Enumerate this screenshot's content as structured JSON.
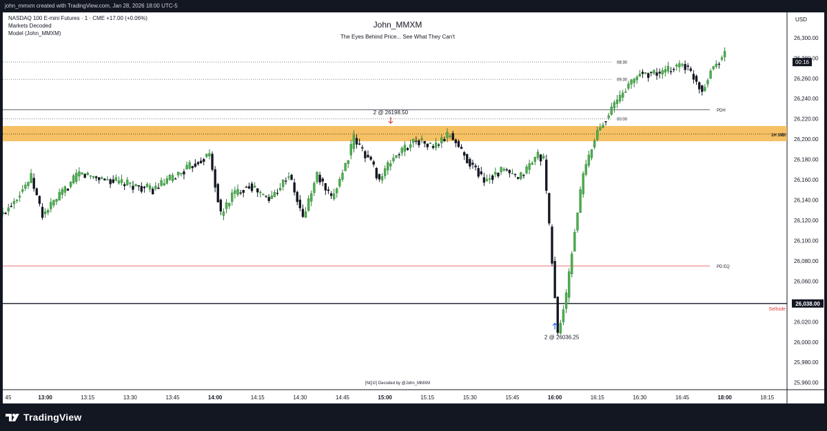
{
  "header": {
    "creator_line": "john_mmxm created with TradingView.com, Jan 28, 2026 18:00 UTC-5"
  },
  "legend": {
    "symbol_line": "NASDAQ 100 E-mini Futures · 1 · CME  +17.00 (+0.06%)",
    "indicator_1": "Markets Decoded",
    "indicator_2": "Model (John_MMXM)"
  },
  "watermark": {
    "title": "John_MMXM",
    "subtitle": "The Eyes Behind Price... See What They Can't",
    "footer_note": "[NQ1!] Decoded by @John_MMXM"
  },
  "price_scale": {
    "currency": "USD",
    "countdown": "00:16",
    "sellside_price": "26,038.00"
  },
  "branding": {
    "name": "TradingView"
  },
  "colors": {
    "bull": "#26a69a",
    "bull_body": "#3b8a4a",
    "bear": "#131722",
    "zone": "#f5b54a",
    "pdeq": "#e57373",
    "sellside_text": "#e53935",
    "buy_arrow": "#2962ff",
    "sell_arrow": "#e53935"
  },
  "chart_data": {
    "type": "candlestick",
    "instrument": "NASDAQ 100 E-mini Futures",
    "timeframe": "1",
    "exchange": "CME",
    "change": "+17.00 (+0.06%)",
    "x_ticks": [
      "45",
      "13:00",
      "13:15",
      "13:30",
      "13:45",
      "14:00",
      "14:15",
      "14:30",
      "14:45",
      "15:00",
      "15:15",
      "15:30",
      "15:45",
      "16:00",
      "16:15",
      "16:30",
      "16:45",
      "18:00",
      "18:15"
    ],
    "x_tick_minutes": [
      765,
      780,
      795,
      810,
      825,
      840,
      855,
      870,
      885,
      900,
      915,
      930,
      945,
      960,
      975,
      990,
      1005,
      1020,
      1035
    ],
    "y_ticks": [
      25960,
      25980,
      26000,
      26020,
      26040,
      26060,
      26080,
      26100,
      26120,
      26140,
      26160,
      26180,
      26200,
      26220,
      26240,
      26260,
      26280,
      26300
    ],
    "y_tick_labels": [
      "25,960.00",
      "25,980.00",
      "26,000.00",
      "26,020.00",
      "26,040.00",
      "26,060.00",
      "26,080.00",
      "26,100.00",
      "26,120.00",
      "26,140.00",
      "26,160.00",
      "26,180.00",
      "26,200.00",
      "26,220.00",
      "26,240.00",
      "26,260.00",
      "26,280.00",
      "26,300.00"
    ],
    "ylim": [
      25953,
      26325
    ],
    "xlim": [
      765,
      1042
    ],
    "levels": [
      {
        "label": "PDH",
        "price": 26229,
        "style": "solid",
        "color": "#5d606b"
      },
      {
        "label": "PD EQ",
        "price": 26075,
        "style": "solid",
        "color": "#e57373"
      },
      {
        "label": "Sellside",
        "price": 26038,
        "style": "solid-bold",
        "color": "#131722",
        "text_color": "#e53935"
      },
      {
        "label": "08:30",
        "price": 26276,
        "style": "dotted",
        "color": "#787b86"
      },
      {
        "label": "09:30",
        "price": 26259,
        "style": "dotted",
        "color": "#787b86"
      },
      {
        "label": "00:00",
        "price": 26220,
        "style": "dotted",
        "color": "#787b86"
      }
    ],
    "zones": [
      {
        "label": "1H SIBI",
        "top": 26213,
        "bottom": 26198,
        "mid": 26205
      }
    ],
    "annotations": [
      {
        "text": "2 @ 26198.50",
        "time": 902,
        "price": 26198.5,
        "arrow": "down",
        "color": "#e53935"
      },
      {
        "text": "2 @ 26036.25",
        "time": 960,
        "price": 26011,
        "arrow": "up",
        "color": "#2962ff"
      }
    ],
    "segments": [
      {
        "t0": 765,
        "t1": 775,
        "p0": 26126,
        "p1": 26162
      },
      {
        "t0": 775,
        "t1": 779,
        "p0": 26162,
        "p1": 26125
      },
      {
        "t0": 779,
        "t1": 792,
        "p0": 26125,
        "p1": 26166
      },
      {
        "t0": 792,
        "t1": 805,
        "p0": 26166,
        "p1": 26158
      },
      {
        "t0": 805,
        "t1": 818,
        "p0": 26158,
        "p1": 26150
      },
      {
        "t0": 818,
        "t1": 825,
        "p0": 26150,
        "p1": 26162
      },
      {
        "t0": 825,
        "t1": 838,
        "p0": 26162,
        "p1": 26185
      },
      {
        "t0": 838,
        "t1": 842,
        "p0": 26185,
        "p1": 26125
      },
      {
        "t0": 842,
        "t1": 846,
        "p0": 26125,
        "p1": 26145
      },
      {
        "t0": 846,
        "t1": 852,
        "p0": 26145,
        "p1": 26155
      },
      {
        "t0": 852,
        "t1": 859,
        "p0": 26155,
        "p1": 26140
      },
      {
        "t0": 859,
        "t1": 866,
        "p0": 26140,
        "p1": 26165
      },
      {
        "t0": 866,
        "t1": 871,
        "p0": 26165,
        "p1": 26122
      },
      {
        "t0": 871,
        "t1": 876,
        "p0": 26122,
        "p1": 26165
      },
      {
        "t0": 876,
        "t1": 881,
        "p0": 26165,
        "p1": 26140
      },
      {
        "t0": 881,
        "t1": 886,
        "p0": 26140,
        "p1": 26175
      },
      {
        "t0": 886,
        "t1": 889,
        "p0": 26175,
        "p1": 26200
      },
      {
        "t0": 889,
        "t1": 895,
        "p0": 26200,
        "p1": 26178
      },
      {
        "t0": 895,
        "t1": 898,
        "p0": 26178,
        "p1": 26160
      },
      {
        "t0": 898,
        "t1": 903,
        "p0": 26160,
        "p1": 26182
      },
      {
        "t0": 903,
        "t1": 911,
        "p0": 26182,
        "p1": 26200
      },
      {
        "t0": 911,
        "t1": 917,
        "p0": 26200,
        "p1": 26192
      },
      {
        "t0": 917,
        "t1": 923,
        "p0": 26192,
        "p1": 26205
      },
      {
        "t0": 923,
        "t1": 929,
        "p0": 26205,
        "p1": 26180
      },
      {
        "t0": 929,
        "t1": 935,
        "p0": 26180,
        "p1": 26160
      },
      {
        "t0": 935,
        "t1": 942,
        "p0": 26160,
        "p1": 26170
      },
      {
        "t0": 942,
        "t1": 947,
        "p0": 26170,
        "p1": 26160
      },
      {
        "t0": 947,
        "t1": 954,
        "p0": 26160,
        "p1": 26185
      },
      {
        "t0": 954,
        "t1": 956,
        "p0": 26185,
        "p1": 26180
      },
      {
        "t0": 956,
        "t1": 959,
        "p0": 26180,
        "p1": 26080
      },
      {
        "t0": 959,
        "t1": 961,
        "p0": 26080,
        "p1": 26008
      },
      {
        "t0": 961,
        "t1": 964,
        "p0": 26008,
        "p1": 26045
      },
      {
        "t0": 964,
        "t1": 967,
        "p0": 26045,
        "p1": 26110
      },
      {
        "t0": 967,
        "t1": 970,
        "p0": 26110,
        "p1": 26165
      },
      {
        "t0": 970,
        "t1": 975,
        "p0": 26165,
        "p1": 26208
      },
      {
        "t0": 975,
        "t1": 980,
        "p0": 26208,
        "p1": 26230
      },
      {
        "t0": 980,
        "t1": 985,
        "p0": 26230,
        "p1": 26250
      },
      {
        "t0": 985,
        "t1": 990,
        "p0": 26250,
        "p1": 26265
      },
      {
        "t0": 990,
        "t1": 998,
        "p0": 26265,
        "p1": 26265
      },
      {
        "t0": 998,
        "t1": 1005,
        "p0": 26265,
        "p1": 26275
      },
      {
        "t0": 1005,
        "t1": 1009,
        "p0": 26275,
        "p1": 26262
      },
      {
        "t0": 1009,
        "t1": 1012,
        "p0": 26262,
        "p1": 26248
      },
      {
        "t0": 1012,
        "t1": 1015,
        "p0": 26248,
        "p1": 26268
      },
      {
        "t0": 1015,
        "t1": 1020,
        "p0": 26268,
        "p1": 26285
      }
    ],
    "last_price": 26285
  }
}
